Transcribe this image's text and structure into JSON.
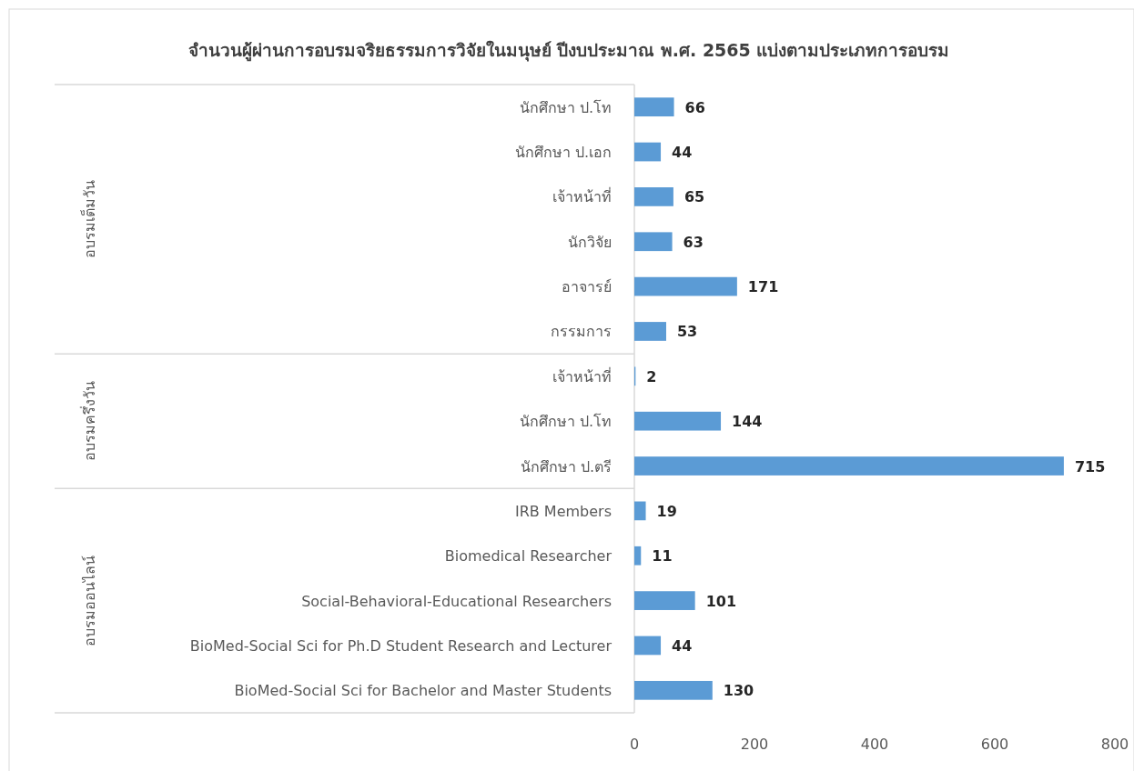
{
  "chart_data": {
    "type": "bar",
    "orientation": "horizontal",
    "title": "จำนวนผู้ผ่านการอบรมจริยธรรมการวิจัยในมนุษย์ ปีงบประมาณ พ.ศ. 2565 แบ่งตามประเภทการอบรม",
    "categories": [
      "นักศึกษา ป.โท",
      "นักศึกษา ป.เอก",
      "เจ้าหน้าที่",
      "นักวิจัย",
      "อาจารย์",
      "กรรมการ",
      "เจ้าหน้าที่",
      "นักศึกษา ป.โท",
      "นักศึกษา ป.ตรี",
      "IRB Members",
      "Biomedical Researcher",
      "Social-Behavioral-Educational Researchers",
      "BioMed-Social Sci for Ph.D Student  Research and Lecturer",
      "BioMed-Social Sci for Bachelor and Master Students"
    ],
    "values": [
      66,
      44,
      65,
      63,
      171,
      53,
      2,
      144,
      715,
      19,
      11,
      101,
      44,
      130
    ],
    "color": "#5b9bd5",
    "data_labels": true,
    "xlim": [
      0,
      800
    ],
    "xticks": [
      0,
      200,
      400,
      600,
      800
    ],
    "annotations": [
      "อบรมเต็มวัน",
      "อบรมครึ่งวัน",
      "อบรมออนไลน์"
    ]
  }
}
